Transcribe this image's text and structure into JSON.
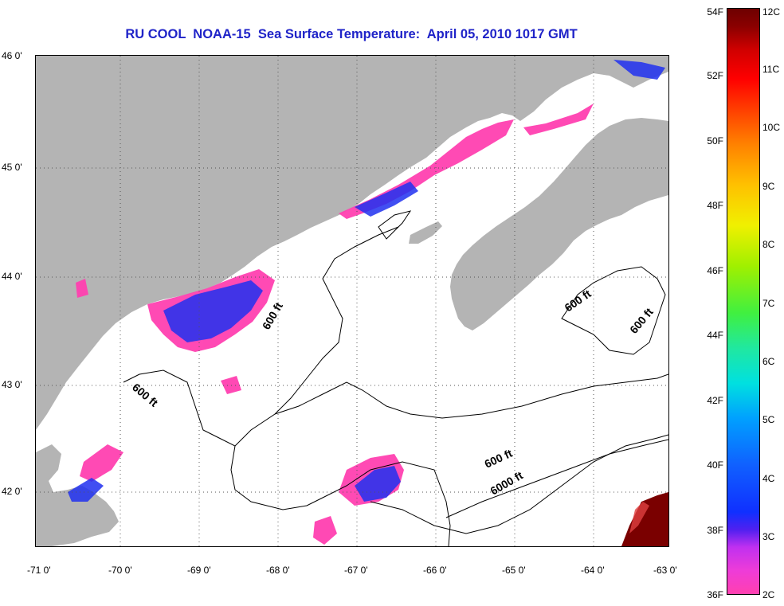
{
  "title": "RU COOL  NOAA-15  Sea Surface Temperature:  April 05, 2010 1017 GMT",
  "latitude_labels": [
    "46 0'",
    "45 0'",
    "44 0'",
    "43 0'",
    "42 0'"
  ],
  "longitude_labels": [
    "-71 0'",
    "-70 0'",
    "-69 0'",
    "-68 0'",
    "-67 0'",
    "-66 0'",
    "-65 0'",
    "-64 0'",
    "-63 0'"
  ],
  "contour_labels": [
    "600 ft",
    "600 ft",
    "600 ft",
    "600 ft",
    "600 ft",
    "6000 ft"
  ],
  "colorbar": {
    "fahrenheit": [
      "54F",
      "52F",
      "50F",
      "48F",
      "46F",
      "44F",
      "42F",
      "40F",
      "38F",
      "36F"
    ],
    "celsius": [
      "12C",
      "11C",
      "10C",
      "9C",
      "8C",
      "7C",
      "6C",
      "5C",
      "4C",
      "3C",
      "2C"
    ]
  },
  "colors": {
    "land": "#b4b4b4",
    "cold": "#ff40b0",
    "mid": "#1030ff",
    "warm": "#7a0000",
    "title": "#1f23c8"
  }
}
